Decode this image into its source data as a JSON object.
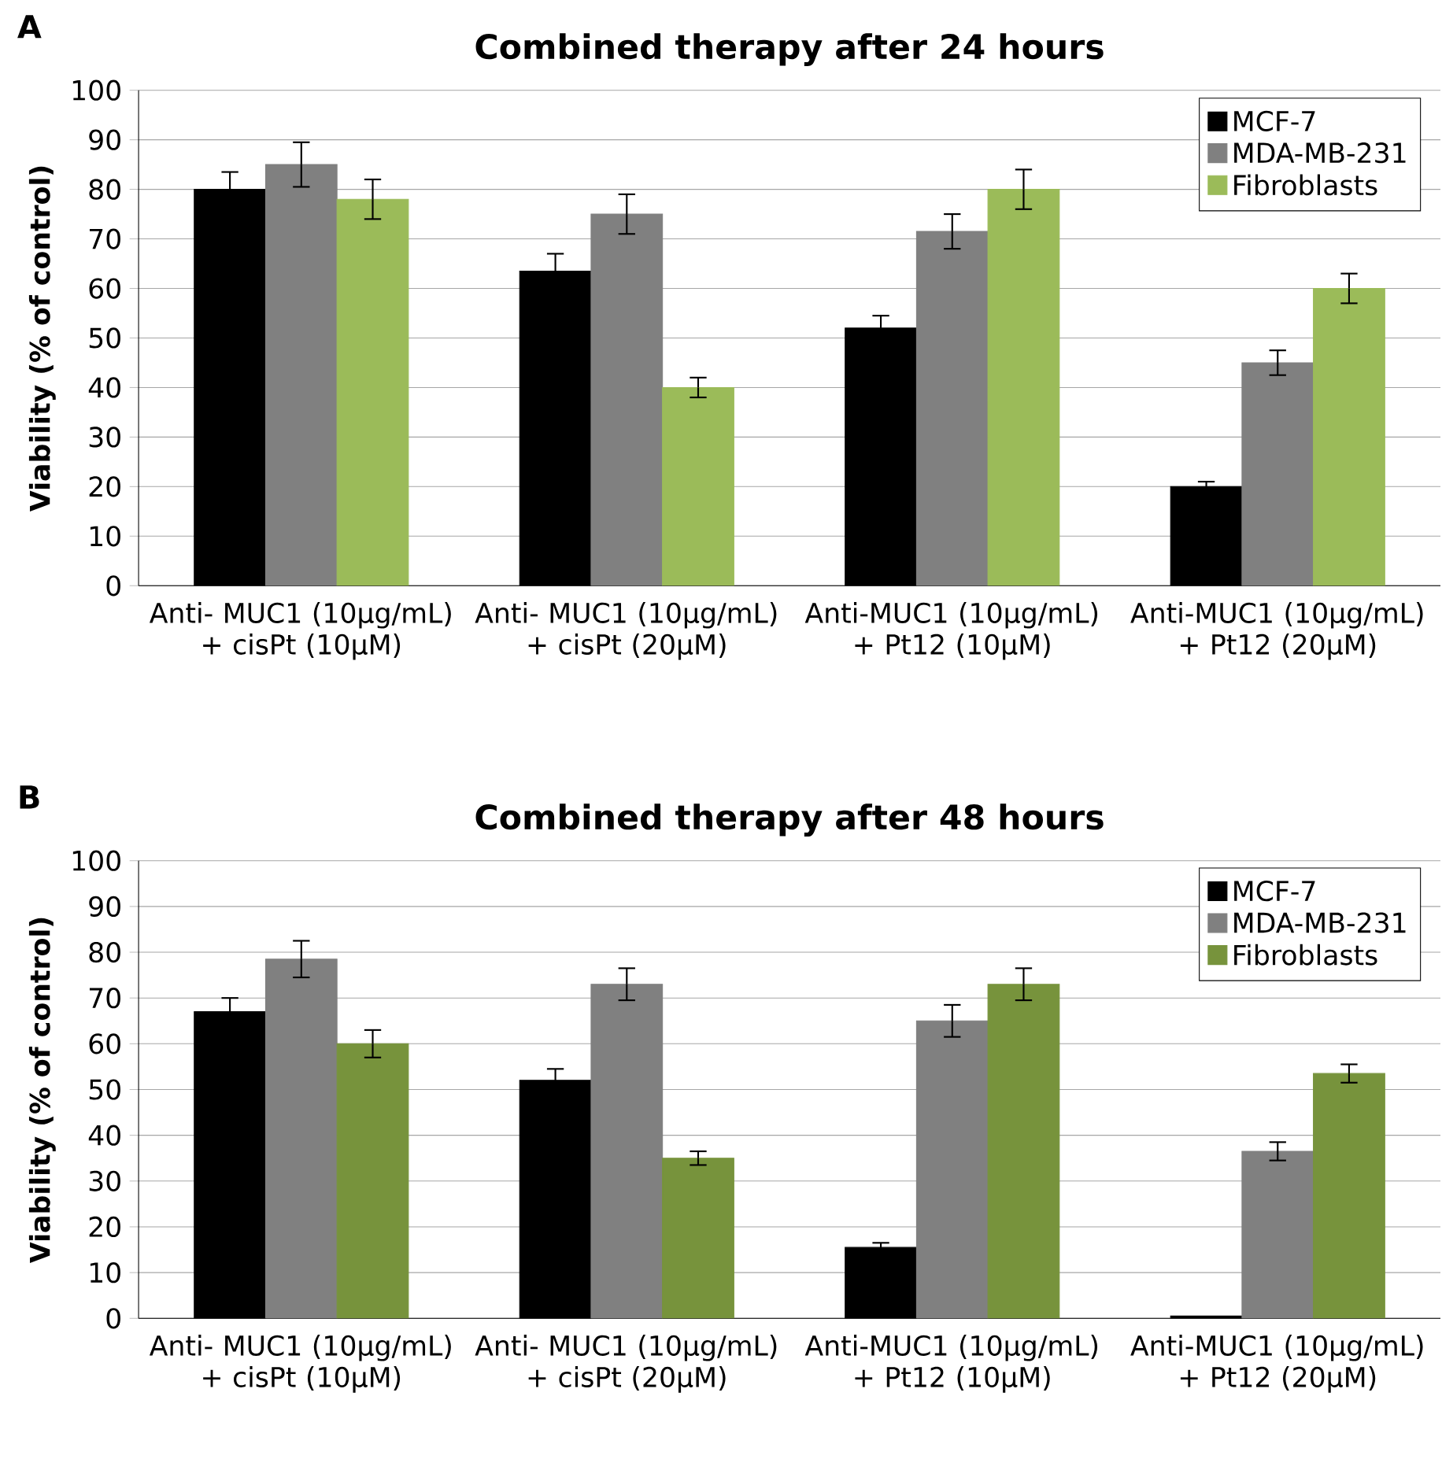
{
  "chart_data": [
    {
      "type": "bar",
      "title": "Combined therapy after 24 hours",
      "ylabel": "Viability (% of control)",
      "categories": [
        "Anti- MUC1 (10µg/mL) + cisPt (10µM)",
        "Anti- MUC1 (10µg/mL) + cisPt (20µM)",
        "Anti-MUC1 (10µg/mL) + Pt12 (10µM)",
        "Anti-MUC1 (10µg/mL) + Pt12 (20µM)"
      ],
      "series": [
        {
          "name": "MCF-7",
          "color": "#000000",
          "values": [
            80,
            63.5,
            52,
            20
          ],
          "errors": [
            3.5,
            3.5,
            2.5,
            1
          ]
        },
        {
          "name": "MDA-MB-231",
          "color": "#808080",
          "values": [
            85,
            75,
            71.5,
            45
          ],
          "errors": [
            4.5,
            4,
            3.5,
            2.5
          ]
        },
        {
          "name": "Fibroblasts",
          "color": "#9bbb59",
          "values": [
            78,
            40,
            80,
            60
          ],
          "errors": [
            4,
            2,
            4,
            3
          ]
        }
      ],
      "ylim": [
        0,
        100
      ],
      "yticks": [
        0,
        10,
        20,
        30,
        40,
        50,
        60,
        70,
        80,
        90,
        100
      ],
      "grid": "y",
      "legend": "top right",
      "annotations": [
        "A"
      ]
    },
    {
      "type": "bar",
      "title": "Combined therapy after 48 hours",
      "ylabel": "Viability (% of control)",
      "categories": [
        "Anti- MUC1 (10µg/mL) + cisPt (10µM)",
        "Anti- MUC1 (10µg/mL) + cisPt (20µM)",
        "Anti-MUC1 (10µg/mL) + Pt12 (10µM)",
        "Anti-MUC1 (10µg/mL) + Pt12 (20µM)"
      ],
      "series": [
        {
          "name": "MCF-7",
          "color": "#000000",
          "values": [
            67,
            52,
            15.5,
            0.5
          ],
          "errors": [
            3,
            2.5,
            1,
            null
          ]
        },
        {
          "name": "MDA-MB-231",
          "color": "#808080",
          "values": [
            78.5,
            73,
            65,
            36.5
          ],
          "errors": [
            4,
            3.5,
            3.5,
            2
          ]
        },
        {
          "name": "Fibroblasts",
          "color": "#77933c",
          "values": [
            60,
            35,
            73,
            53.5
          ],
          "errors": [
            3,
            1.5,
            3.5,
            2
          ]
        }
      ],
      "ylim": [
        0,
        100
      ],
      "yticks": [
        0,
        10,
        20,
        30,
        40,
        50,
        60,
        70,
        80,
        90,
        100
      ],
      "grid": "y",
      "legend": "top right",
      "annotations": [
        "B"
      ]
    }
  ]
}
